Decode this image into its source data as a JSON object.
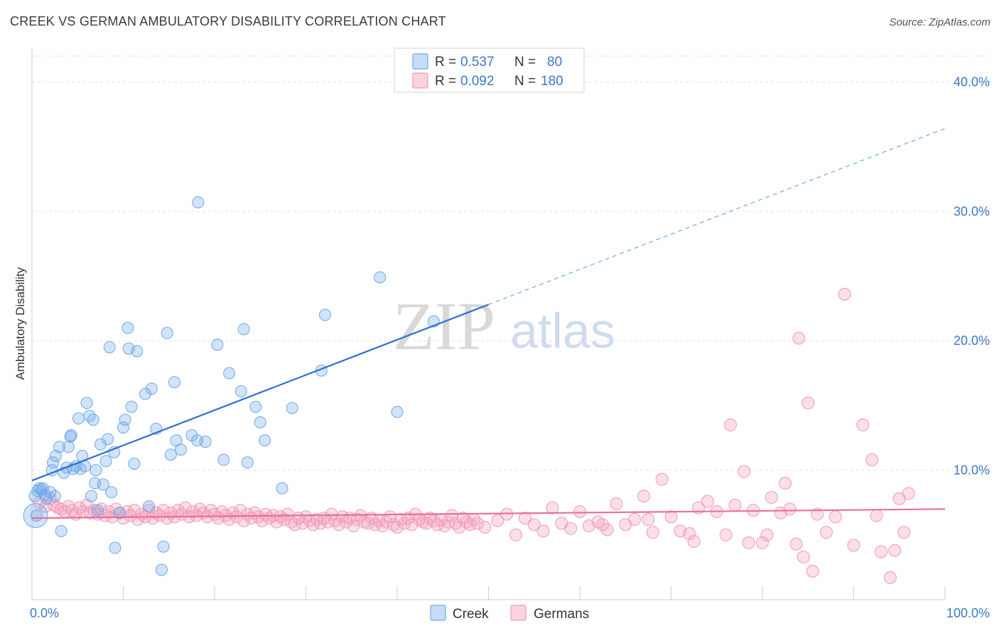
{
  "title": "CREEK VS GERMAN AMBULATORY DISABILITY CORRELATION CHART",
  "source": "Source: ZipAtlas.com",
  "watermark": {
    "zip": "ZIP",
    "atlas": "atlas"
  },
  "colors": {
    "creek": "#6fa8e8",
    "creek_line": "#2f6fcf",
    "germans": "#f29ab6",
    "germans_line": "#e8709a",
    "tick": "#3d78c9"
  },
  "chart_data": {
    "type": "scatter",
    "title": "CREEK VS GERMAN AMBULATORY DISABILITY CORRELATION CHART",
    "xlabel": "",
    "ylabel": "Ambulatory Disability",
    "xlim": [
      0,
      100
    ],
    "ylim": [
      0,
      42
    ],
    "x_tick_labels": [
      "0.0%",
      "100.0%"
    ],
    "y_ticks": [
      10,
      20,
      30,
      40
    ],
    "y_tick_labels": [
      "10.0%",
      "20.0%",
      "30.0%",
      "40.0%"
    ],
    "grid": true,
    "legend": {
      "placement": "top-center",
      "entries": [
        {
          "name": "Creek",
          "r_label": "R =",
          "r": "0.537",
          "n_label": "N =",
          "n": "80"
        },
        {
          "name": "Germans",
          "r_label": "R =",
          "r": "0.092",
          "n_label": "N =",
          "n": "180"
        }
      ]
    },
    "series": [
      {
        "name": "Creek",
        "trend": {
          "x0": 0,
          "y0": 9.2,
          "x1": 50,
          "y1": 22.8,
          "dashed_to_x": 100,
          "dashed_to_y": 36.4
        },
        "points": [
          [
            0.6,
            8.4
          ],
          [
            0.8,
            8.6
          ],
          [
            1.2,
            8.6
          ],
          [
            1.6,
            7.8
          ],
          [
            2.0,
            8.3
          ],
          [
            2.2,
            10.0
          ],
          [
            2.3,
            10.6
          ],
          [
            2.6,
            11.1
          ],
          [
            3.0,
            11.8
          ],
          [
            3.2,
            5.3
          ],
          [
            3.5,
            9.8
          ],
          [
            3.8,
            10.2
          ],
          [
            4.0,
            11.8
          ],
          [
            4.2,
            12.6
          ],
          [
            4.3,
            12.7
          ],
          [
            4.5,
            10.1
          ],
          [
            4.8,
            10.3
          ],
          [
            5.1,
            14.0
          ],
          [
            5.3,
            10.1
          ],
          [
            5.5,
            11.1
          ],
          [
            5.8,
            10.3
          ],
          [
            6.0,
            15.2
          ],
          [
            6.3,
            14.2
          ],
          [
            6.5,
            8.0
          ],
          [
            6.7,
            13.9
          ],
          [
            7.0,
            10.0
          ],
          [
            7.2,
            6.9
          ],
          [
            7.5,
            12.0
          ],
          [
            7.8,
            8.9
          ],
          [
            8.1,
            10.7
          ],
          [
            8.3,
            12.4
          ],
          [
            8.5,
            19.5
          ],
          [
            8.7,
            8.3
          ],
          [
            9.0,
            11.4
          ],
          [
            9.1,
            4.0
          ],
          [
            9.6,
            6.7
          ],
          [
            10.0,
            13.3
          ],
          [
            10.2,
            13.9
          ],
          [
            10.5,
            21.0
          ],
          [
            10.6,
            19.4
          ],
          [
            10.9,
            14.9
          ],
          [
            11.2,
            10.5
          ],
          [
            11.5,
            19.2
          ],
          [
            12.4,
            15.9
          ],
          [
            12.8,
            7.2
          ],
          [
            13.1,
            16.3
          ],
          [
            13.6,
            13.2
          ],
          [
            14.2,
            2.3
          ],
          [
            14.4,
            4.1
          ],
          [
            14.8,
            20.6
          ],
          [
            15.2,
            11.2
          ],
          [
            15.6,
            16.8
          ],
          [
            15.8,
            12.3
          ],
          [
            16.3,
            11.6
          ],
          [
            17.5,
            12.7
          ],
          [
            18.1,
            12.3
          ],
          [
            19.0,
            12.2
          ],
          [
            18.2,
            30.7
          ],
          [
            20.3,
            19.7
          ],
          [
            21.0,
            10.8
          ],
          [
            21.6,
            17.5
          ],
          [
            22.9,
            16.1
          ],
          [
            23.2,
            20.9
          ],
          [
            23.6,
            10.6
          ],
          [
            24.5,
            14.9
          ],
          [
            25.0,
            13.7
          ],
          [
            25.5,
            12.3
          ],
          [
            27.4,
            8.6
          ],
          [
            28.5,
            14.8
          ],
          [
            31.7,
            17.7
          ],
          [
            32.1,
            22.0
          ],
          [
            38.1,
            24.9
          ],
          [
            40.0,
            14.5
          ],
          [
            44.0,
            21.5
          ],
          [
            0.3,
            8.0
          ],
          [
            0.5,
            6.5
          ],
          [
            1.0,
            8.5
          ],
          [
            1.4,
            8.1
          ],
          [
            6.9,
            9.0
          ],
          [
            2.5,
            8.0
          ]
        ]
      },
      {
        "name": "Germans",
        "trend": {
          "x0": 0,
          "y0": 6.3,
          "x1": 100,
          "y1": 7.0
        },
        "points": [
          [
            0.8,
            7.5
          ],
          [
            1.5,
            7.2
          ],
          [
            2.0,
            7.8
          ],
          [
            2.4,
            7.3
          ],
          [
            2.8,
            7.1
          ],
          [
            3.2,
            7.0
          ],
          [
            3.6,
            6.8
          ],
          [
            4.0,
            7.2
          ],
          [
            4.4,
            6.9
          ],
          [
            4.8,
            6.6
          ],
          [
            5.2,
            7.1
          ],
          [
            5.6,
            6.8
          ],
          [
            6.0,
            7.3
          ],
          [
            6.4,
            6.7
          ],
          [
            6.8,
            6.9
          ],
          [
            7.2,
            6.6
          ],
          [
            7.6,
            7.0
          ],
          [
            8.0,
            6.5
          ],
          [
            8.4,
            6.8
          ],
          [
            8.8,
            6.4
          ],
          [
            9.2,
            7.0
          ],
          [
            9.6,
            6.7
          ],
          [
            10.0,
            6.3
          ],
          [
            10.4,
            6.8
          ],
          [
            10.8,
            6.5
          ],
          [
            11.2,
            6.9
          ],
          [
            11.6,
            6.2
          ],
          [
            12.0,
            6.6
          ],
          [
            12.4,
            6.4
          ],
          [
            12.8,
            6.9
          ],
          [
            13.2,
            6.3
          ],
          [
            13.6,
            6.7
          ],
          [
            14.0,
            6.5
          ],
          [
            14.4,
            6.9
          ],
          [
            14.8,
            6.3
          ],
          [
            15.2,
            6.7
          ],
          [
            15.6,
            6.4
          ],
          [
            16.0,
            6.9
          ],
          [
            16.4,
            6.6
          ],
          [
            16.8,
            7.1
          ],
          [
            17.2,
            6.4
          ],
          [
            17.6,
            6.8
          ],
          [
            18.0,
            6.5
          ],
          [
            18.4,
            7.0
          ],
          [
            18.8,
            6.7
          ],
          [
            19.2,
            6.4
          ],
          [
            19.6,
            6.9
          ],
          [
            20.0,
            6.6
          ],
          [
            20.4,
            6.3
          ],
          [
            20.8,
            6.8
          ],
          [
            21.2,
            6.5
          ],
          [
            21.6,
            6.2
          ],
          [
            22.0,
            6.7
          ],
          [
            22.4,
            6.4
          ],
          [
            22.8,
            6.9
          ],
          [
            23.2,
            6.1
          ],
          [
            23.6,
            6.6
          ],
          [
            24.0,
            6.3
          ],
          [
            24.4,
            6.7
          ],
          [
            24.8,
            6.4
          ],
          [
            25.2,
            6.1
          ],
          [
            25.6,
            6.6
          ],
          [
            26.0,
            6.3
          ],
          [
            26.4,
            6.5
          ],
          [
            26.8,
            6.0
          ],
          [
            27.2,
            6.4
          ],
          [
            27.6,
            6.2
          ],
          [
            28.0,
            6.6
          ],
          [
            28.4,
            6.0
          ],
          [
            28.8,
            5.8
          ],
          [
            29.2,
            6.3
          ],
          [
            29.6,
            5.9
          ],
          [
            30.0,
            6.4
          ],
          [
            30.4,
            6.1
          ],
          [
            30.8,
            5.8
          ],
          [
            31.2,
            6.2
          ],
          [
            31.6,
            5.9
          ],
          [
            32.0,
            6.3
          ],
          [
            32.4,
            6.0
          ],
          [
            32.8,
            6.6
          ],
          [
            33.2,
            6.1
          ],
          [
            33.6,
            5.8
          ],
          [
            34.0,
            6.4
          ],
          [
            34.4,
            6.0
          ],
          [
            34.8,
            6.3
          ],
          [
            35.2,
            5.7
          ],
          [
            35.6,
            6.2
          ],
          [
            36.0,
            6.5
          ],
          [
            36.4,
            6.0
          ],
          [
            36.8,
            5.9
          ],
          [
            37.2,
            6.3
          ],
          [
            37.6,
            5.8
          ],
          [
            38.0,
            6.1
          ],
          [
            38.4,
            5.7
          ],
          [
            38.8,
            6.0
          ],
          [
            39.2,
            6.4
          ],
          [
            39.6,
            5.8
          ],
          [
            40.0,
            5.6
          ],
          [
            40.4,
            6.2
          ],
          [
            40.8,
            5.9
          ],
          [
            41.2,
            6.3
          ],
          [
            41.6,
            5.8
          ],
          [
            42.0,
            6.6
          ],
          [
            42.4,
            6.2
          ],
          [
            42.8,
            6.0
          ],
          [
            43.2,
            5.9
          ],
          [
            43.6,
            6.3
          ],
          [
            44.0,
            6.1
          ],
          [
            44.4,
            5.8
          ],
          [
            44.8,
            6.2
          ],
          [
            45.2,
            5.7
          ],
          [
            45.6,
            6.0
          ],
          [
            46.0,
            6.5
          ],
          [
            46.4,
            5.9
          ],
          [
            46.8,
            5.6
          ],
          [
            47.2,
            6.3
          ],
          [
            47.6,
            6.0
          ],
          [
            48.0,
            5.8
          ],
          [
            48.4,
            6.2
          ],
          [
            48.8,
            5.9
          ],
          [
            49.6,
            5.6
          ],
          [
            51.0,
            6.1
          ],
          [
            52.0,
            6.6
          ],
          [
            53.0,
            5.0
          ],
          [
            54.0,
            6.3
          ],
          [
            55.0,
            5.8
          ],
          [
            56.0,
            5.3
          ],
          [
            57.0,
            7.1
          ],
          [
            58.0,
            5.9
          ],
          [
            59.0,
            5.5
          ],
          [
            60.0,
            6.8
          ],
          [
            61.0,
            5.7
          ],
          [
            62.0,
            6.0
          ],
          [
            63.0,
            5.4
          ],
          [
            64.0,
            7.4
          ],
          [
            65.0,
            5.8
          ],
          [
            66.0,
            6.2
          ],
          [
            67.0,
            8.0
          ],
          [
            68.0,
            5.2
          ],
          [
            69.0,
            9.3
          ],
          [
            70.0,
            6.4
          ],
          [
            71.0,
            5.3
          ],
          [
            72.0,
            5.1
          ],
          [
            73.0,
            7.1
          ],
          [
            74.0,
            7.6
          ],
          [
            75.0,
            6.8
          ],
          [
            76.0,
            5.0
          ],
          [
            77.0,
            7.3
          ],
          [
            78.0,
            9.9
          ],
          [
            79.0,
            6.9
          ],
          [
            80.0,
            4.4
          ],
          [
            81.0,
            7.9
          ],
          [
            82.0,
            6.7
          ],
          [
            83.0,
            7.0
          ],
          [
            84.0,
            20.2
          ],
          [
            85.0,
            15.2
          ],
          [
            86.0,
            6.6
          ],
          [
            87.0,
            5.2
          ],
          [
            88.0,
            6.4
          ],
          [
            89.0,
            23.6
          ],
          [
            90.0,
            4.2
          ],
          [
            91.0,
            13.5
          ],
          [
            92.0,
            10.8
          ],
          [
            93.0,
            3.7
          ],
          [
            94.0,
            1.7
          ],
          [
            95.0,
            7.8
          ],
          [
            96.0,
            8.2
          ],
          [
            83.7,
            4.3
          ],
          [
            84.5,
            3.3
          ],
          [
            85.5,
            2.2
          ],
          [
            76.5,
            13.5
          ],
          [
            92.5,
            6.5
          ],
          [
            94.5,
            3.8
          ],
          [
            95.5,
            5.2
          ],
          [
            78.5,
            4.4
          ],
          [
            80.5,
            5.0
          ],
          [
            82.5,
            9.0
          ],
          [
            72.5,
            4.5
          ],
          [
            67.5,
            6.2
          ],
          [
            62.5,
            5.8
          ]
        ]
      }
    ]
  }
}
